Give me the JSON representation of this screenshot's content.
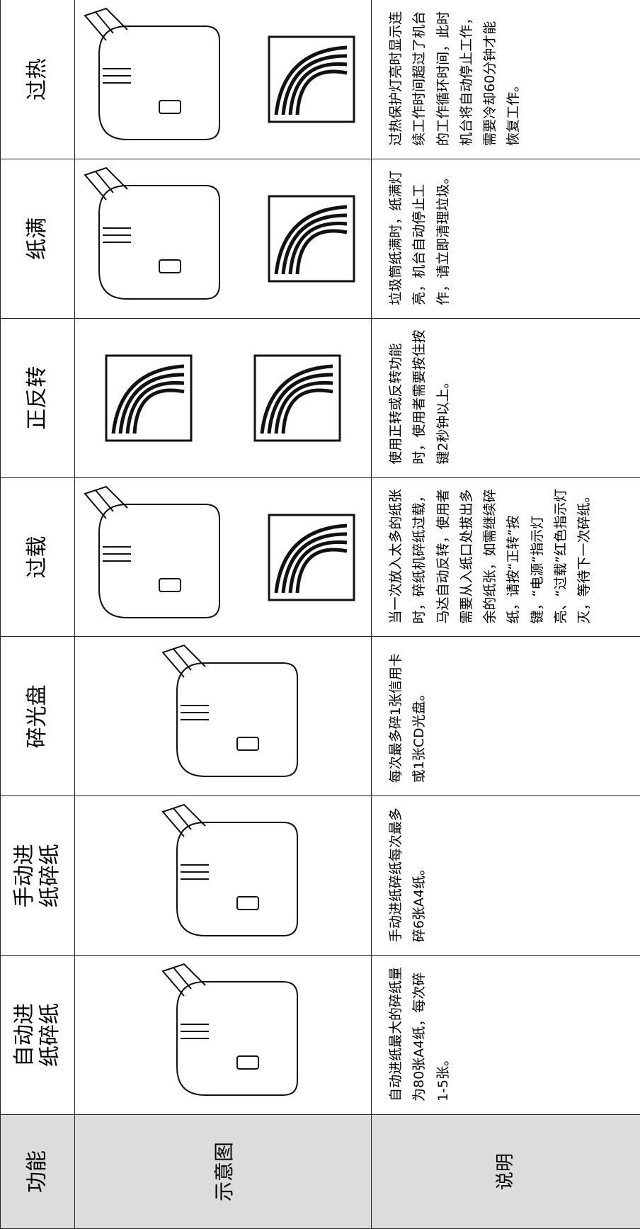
{
  "header": {
    "function": "功能",
    "diagram": "示意图",
    "description": "说明"
  },
  "rows": [
    {
      "function": "自动进纸碎纸",
      "description": "自动进纸最大的碎纸量为80张A4纸，每次碎1-5张。"
    },
    {
      "function": "手动进纸碎纸",
      "description": "手动进纸碎纸每次最多碎6张A4纸。"
    },
    {
      "function": "碎光盘",
      "description": "每次最多碎1张信用卡或1张CD光盘。"
    },
    {
      "function": "过载",
      "description": "当一次放入太多的纸张时，碎纸机碎纸过载，马达自动反转，使用者需要从入纸口处拔出多余的纸张，如需继续碎纸，请按“正转”按键，“电源”指示灯亮、“过载”红色指示灯灭，等待下一次碎纸。"
    },
    {
      "function": "正反转",
      "description": "使用正转或反转功能时，使用者需要按住按键2秒钟以上。"
    },
    {
      "function": "纸满",
      "description": "垃圾筒纸满时，纸满灯亮，机台自动停止工作，请立即清理垃圾。"
    },
    {
      "function": "过热",
      "description": "过热保护灯亮时显示连续工作时间超过了机台的工作循环时间，此时机台将自动停止工作，需要冷却60分钟才能恢复工作。"
    }
  ]
}
